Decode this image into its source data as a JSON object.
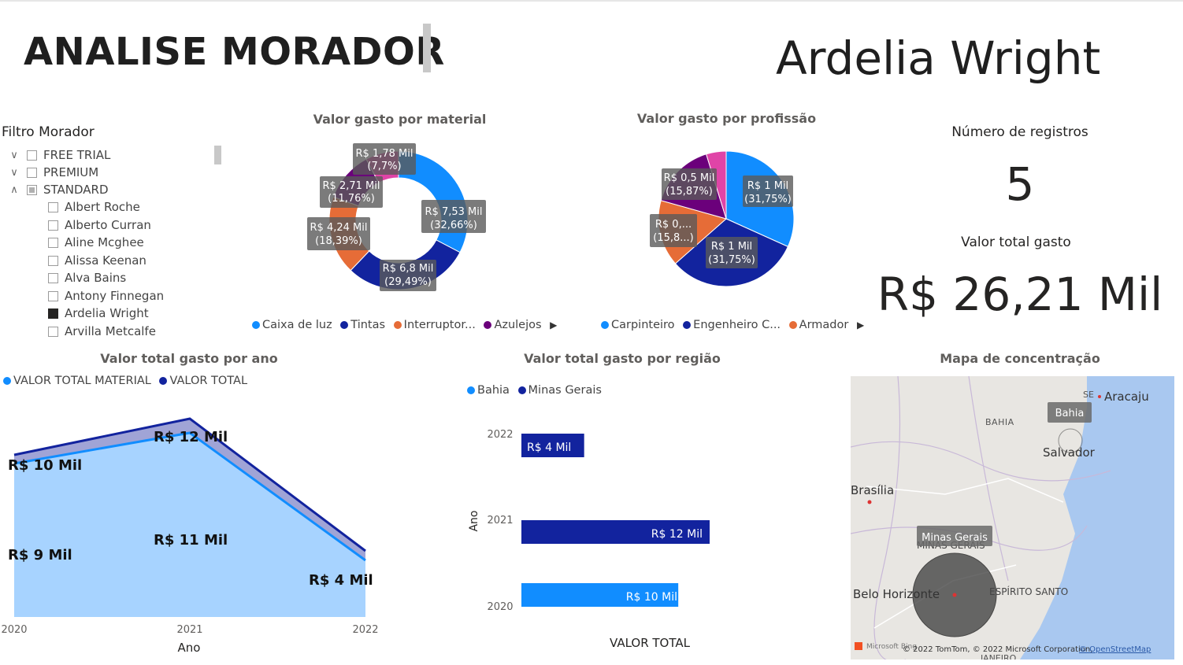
{
  "header": {
    "title": "ANALISE MORADOR",
    "resident_name": "Ardelia Wright"
  },
  "slicer": {
    "title": "Filtro Morador",
    "groups": [
      {
        "label": "FREE TRIAL",
        "state": "collapsed"
      },
      {
        "label": "PREMIUM",
        "state": "collapsed"
      },
      {
        "label": "STANDARD",
        "state": "expanded"
      }
    ],
    "items": [
      {
        "label": "Albert Roche",
        "checked": false
      },
      {
        "label": "Alberto Curran",
        "checked": false
      },
      {
        "label": "Aline Mcghee",
        "checked": false
      },
      {
        "label": "Alissa Keenan",
        "checked": false
      },
      {
        "label": "Alva Bains",
        "checked": false
      },
      {
        "label": "Antony Finnegan",
        "checked": false
      },
      {
        "label": "Ardelia Wright",
        "checked": true
      },
      {
        "label": "Arvilla Metcalfe",
        "checked": false
      }
    ]
  },
  "donut": {
    "title": "Valor gasto por material",
    "legend": [
      "Caixa de luz",
      "Tintas",
      "Interruptor...",
      "Azulejos"
    ],
    "labels": [
      {
        "value": "R$ 7,53 Mil",
        "pct": "(32,66%)"
      },
      {
        "value": "R$ 6,8 Mil",
        "pct": "(29,49%)"
      },
      {
        "value": "R$ 4,24 Mil",
        "pct": "(18,39%)"
      },
      {
        "value": "R$ 2,71 Mil",
        "pct": "(11,76%)"
      },
      {
        "value": "R$ 1,78 Mil",
        "pct": "(7,7%)"
      }
    ]
  },
  "pie": {
    "title": "Valor gasto por profissão",
    "legend": [
      "Carpinteiro",
      "Engenheiro C...",
      "Armador"
    ],
    "labels": [
      {
        "value": "R$ 1 Mil",
        "pct": "(31,75%)"
      },
      {
        "value": "R$ 1 Mil",
        "pct": "(31,75%)"
      },
      {
        "value": "R$ 0,...",
        "pct": "(15,8...)"
      },
      {
        "value": "R$ 0,5 Mil",
        "pct": "(15,87%)"
      }
    ]
  },
  "cards": {
    "records_label": "Número de registros",
    "records_value": "5",
    "total_label": "Valor total gasto",
    "total_value": "R$ 26,21 Mil"
  },
  "area": {
    "title": "Valor total gasto por ano",
    "legend": [
      "VALOR TOTAL MATERIAL",
      "VALOR TOTAL"
    ],
    "xlabel": "Ano",
    "ticks": [
      "2020",
      "2021",
      "2022"
    ],
    "labels_total": [
      "R$ 10 Mil",
      "R$ 12 Mil",
      "R$ 4 Mil"
    ],
    "labels_material": [
      "R$ 9 Mil",
      "R$ 11 Mil"
    ]
  },
  "bars": {
    "title": "Valor total gasto por região",
    "legend": [
      "Bahia",
      "Minas Gerais"
    ],
    "ylabel": "Ano",
    "xlabel": "VALOR TOTAL",
    "years": [
      "2022",
      "2021",
      "2020"
    ],
    "labels": [
      "R$ 4 Mil",
      "R$ 12 Mil",
      "R$ 10 Mil"
    ]
  },
  "map": {
    "title": "Mapa de concentração",
    "places": [
      "Aracaju",
      "SE",
      "BAHIA",
      "Salvador",
      "Brasília",
      "Belo Horizonte",
      "ESPÍRITO SANTO",
      "MINAS GERAIS",
      "JANEIRO"
    ],
    "bubble_labels": [
      "Bahia",
      "Minas Gerais"
    ],
    "attribution": "© 2022 TomTom, © 2022 Microsoft Corporation,",
    "attribution_link": "© OpenStreetMap",
    "logo": "Microsoft Bing"
  },
  "chart_data": [
    {
      "type": "pie",
      "title": "Valor gasto por material",
      "categories": [
        "Caixa de luz",
        "Tintas",
        "Interruptor...",
        "Azulejos",
        ""
      ],
      "values": [
        7.53,
        6.8,
        4.24,
        2.71,
        1.78
      ],
      "percent": [
        32.66,
        29.49,
        18.39,
        11.76,
        7.7
      ],
      "colors": [
        "#118dff",
        "#12239e",
        "#e66c37",
        "#6b007b",
        "#e044a7"
      ],
      "style": "donut"
    },
    {
      "type": "pie",
      "title": "Valor gasto por profissão",
      "categories": [
        "Carpinteiro",
        "Engenheiro C...",
        "Armador",
        "",
        ""
      ],
      "values": [
        1.0,
        1.0,
        0.5,
        0.5,
        0.15
      ],
      "percent": [
        31.75,
        31.75,
        15.8,
        15.87,
        4.83
      ],
      "colors": [
        "#118dff",
        "#12239e",
        "#e66c37",
        "#6b007b",
        "#e044a7"
      ]
    },
    {
      "type": "area",
      "title": "Valor total gasto por ano",
      "x": [
        "2020",
        "2021",
        "2022"
      ],
      "series": [
        {
          "name": "VALOR TOTAL MATERIAL",
          "values": [
            9,
            11,
            4
          ],
          "color": "#118dff"
        },
        {
          "name": "VALOR TOTAL",
          "values": [
            10,
            12,
            4
          ],
          "color": "#12239e"
        }
      ],
      "xlabel": "Ano"
    },
    {
      "type": "bar",
      "title": "Valor total gasto por região",
      "orientation": "horizontal",
      "categories": [
        "2022",
        "2021",
        "2020"
      ],
      "series": [
        {
          "name": "Bahia",
          "values": [
            0,
            0,
            10
          ],
          "color": "#118dff"
        },
        {
          "name": "Minas Gerais",
          "values": [
            4,
            12,
            0
          ],
          "color": "#12239e"
        }
      ],
      "xlabel": "VALOR TOTAL",
      "ylabel": "Ano",
      "xlim": [
        0,
        12
      ]
    }
  ]
}
